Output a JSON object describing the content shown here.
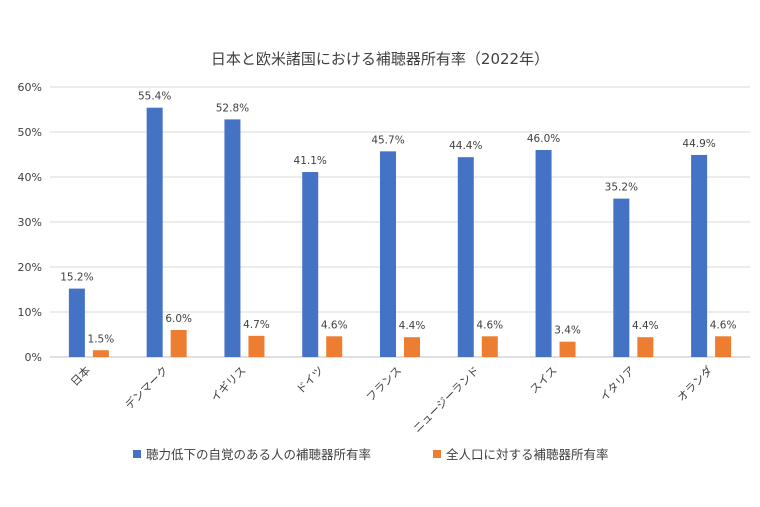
{
  "chart_data": {
    "type": "bar",
    "title": "日本と欧米諸国における補聴器所有率（2022年）",
    "categories": [
      "日本",
      "デンマーク",
      "イギリス",
      "ドイツ",
      "フランス",
      "ニュージーランド",
      "スイス",
      "イタリア",
      "オランダ"
    ],
    "series": [
      {
        "name": "聴力低下の自覚のある人の補聴器所有率",
        "color": "#4472c4",
        "values": [
          15.2,
          55.4,
          52.8,
          41.1,
          45.7,
          44.4,
          46.0,
          35.2,
          44.9
        ],
        "labels": [
          "15.2%",
          "55.4%",
          "52.8%",
          "41.1%",
          "45.7%",
          "44.4%",
          "46.0%",
          "35.2%",
          "44.9%"
        ]
      },
      {
        "name": "全人口に対する補聴器所有率",
        "color": "#ed7d31",
        "values": [
          1.5,
          6.0,
          4.7,
          4.6,
          4.4,
          4.6,
          3.4,
          4.4,
          4.6
        ],
        "labels": [
          "1.5%",
          "6.0%",
          "4.7%",
          "4.6%",
          "4.4%",
          "4.6%",
          "3.4%",
          "4.4%",
          "4.6%"
        ]
      }
    ],
    "ylim": [
      0,
      60
    ],
    "yticks": [
      "0%",
      "10%",
      "20%",
      "30%",
      "40%",
      "50%",
      "60%"
    ],
    "grid": true,
    "legend_position": "bottom"
  }
}
